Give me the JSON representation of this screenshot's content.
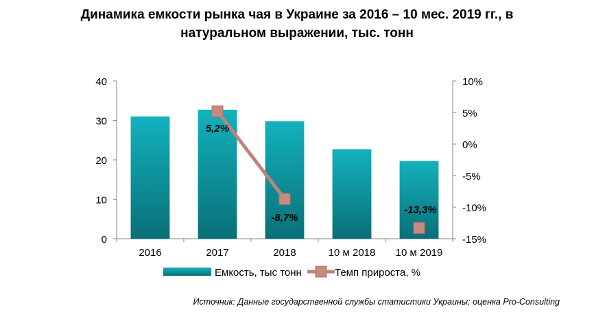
{
  "title_line1": "Динамика емкости рынка чая в Украине за 2016 – 10 мес. 2019 гг., в",
  "title_line2": "натуральном выражении, тыс. тонн",
  "source": "Источник: Данные государственной службы статистики Украины; оценка Pro-Consulting",
  "chart_data": {
    "type": "bar",
    "categories": [
      "2016",
      "2017",
      "2018",
      "10 м 2018",
      "10 м 2019"
    ],
    "series": [
      {
        "name": "Емкость, тыс тонн",
        "type": "bar",
        "axis": "left",
        "values": [
          31.0,
          32.7,
          29.8,
          22.7,
          19.7
        ],
        "color": "#1aa3ad"
      },
      {
        "name": "Темп прироста, %",
        "type": "line",
        "axis": "right",
        "points": [
          {
            "category": "2017",
            "value": 5.2,
            "label": "5,2%"
          },
          {
            "category": "2018",
            "value": -8.7,
            "label": "-8,7%"
          },
          {
            "category": "10 м 2019",
            "value": -13.3,
            "label": "-13,3%"
          }
        ],
        "color": "#c0837a",
        "marker_color": "#c88a80"
      }
    ],
    "left_axis": {
      "min": 0,
      "max": 40,
      "ticks": [
        "0",
        "10",
        "20",
        "30",
        "40"
      ],
      "tick_values": [
        0,
        10,
        20,
        30,
        40
      ]
    },
    "right_axis": {
      "min": -15,
      "max": 10,
      "ticks": [
        "-15%",
        "-10%",
        "-5%",
        "0%",
        "5%",
        "10%"
      ],
      "tick_values": [
        -15,
        -10,
        -5,
        0,
        5,
        10
      ]
    },
    "grid": false,
    "legend_position": "bottom"
  }
}
